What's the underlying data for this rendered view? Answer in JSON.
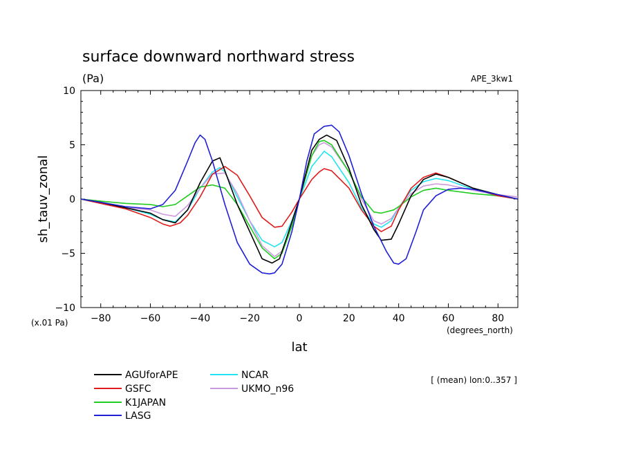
{
  "chart_data": {
    "type": "line",
    "title": "surface downward northward stress",
    "units": "(Pa)",
    "experiment": "APE_3kw1",
    "ylabel": "sh_tauv_zonal",
    "xlabel": "lat",
    "y_scale_note": "(x.01 Pa)",
    "x_unit_note": "(degrees_north)",
    "annotation": "[ (mean) lon:0..357 ]",
    "xlim": [
      -88,
      88
    ],
    "ylim": [
      -10,
      10
    ],
    "x_ticks": [
      -80,
      -60,
      -40,
      -20,
      0,
      20,
      40,
      60,
      80
    ],
    "x_tick_labels": [
      "−80",
      "−60",
      "−40",
      "−20",
      "0",
      "20",
      "40",
      "60",
      "80"
    ],
    "y_ticks": [
      -10,
      -5,
      0,
      5,
      10
    ],
    "y_tick_labels": [
      "−10",
      "−5",
      "0",
      "5",
      "10"
    ],
    "series": [
      {
        "name": "AGUforAPE",
        "color": "#000000",
        "x": [
          -88,
          -80,
          -70,
          -60,
          -55,
          -50,
          -45,
          -40,
          -35,
          -32,
          -30,
          -25,
          -20,
          -15,
          -11,
          -8,
          -5,
          0,
          5,
          8,
          11,
          15,
          20,
          25,
          30,
          33,
          37,
          40,
          45,
          50,
          55,
          60,
          70,
          80,
          88
        ],
        "y": [
          0,
          -0.3,
          -0.8,
          -1.3,
          -1.9,
          -2.2,
          -1.0,
          1.5,
          3.5,
          3.8,
          2.6,
          -0.5,
          -3.0,
          -5.5,
          -5.9,
          -5.5,
          -3.5,
          0,
          4.5,
          5.5,
          5.9,
          5.4,
          2.8,
          -0.5,
          -2.8,
          -3.8,
          -3.7,
          -2.3,
          0.3,
          1.8,
          2.3,
          2.0,
          1.0,
          0.4,
          0
        ]
      },
      {
        "name": "GSFC",
        "color": "#e01b1b",
        "x": [
          -88,
          -80,
          -70,
          -60,
          -55,
          -52,
          -48,
          -45,
          -40,
          -35,
          -30,
          -25,
          -20,
          -15,
          -10,
          -7,
          -3,
          0,
          5,
          8,
          10,
          13,
          20,
          25,
          30,
          33,
          37,
          40,
          45,
          50,
          55,
          60,
          70,
          80,
          88
        ],
        "y": [
          0,
          -0.4,
          -0.9,
          -1.7,
          -2.3,
          -2.5,
          -2.2,
          -1.5,
          0.2,
          2.3,
          3.0,
          2.2,
          0.3,
          -1.7,
          -2.6,
          -2.5,
          -1.2,
          0,
          1.8,
          2.5,
          2.8,
          2.6,
          1.0,
          -1.0,
          -2.5,
          -3.0,
          -2.5,
          -1.0,
          1.0,
          2.0,
          2.4,
          2.0,
          1.0,
          0.3,
          0
        ]
      },
      {
        "name": "K1JAPAN",
        "color": "#1fcc1f",
        "x": [
          -88,
          -80,
          -70,
          -60,
          -55,
          -50,
          -45,
          -40,
          -35,
          -30,
          -25,
          -20,
          -15,
          -10,
          -7,
          -3,
          0,
          5,
          8,
          10,
          13,
          20,
          25,
          30,
          33,
          38,
          40,
          45,
          50,
          55,
          60,
          70,
          80,
          88
        ],
        "y": [
          0,
          -0.2,
          -0.4,
          -0.5,
          -0.7,
          -0.5,
          0.3,
          1.1,
          1.3,
          1.0,
          -0.5,
          -2.5,
          -4.5,
          -5.5,
          -5.0,
          -2.5,
          0,
          4.0,
          5.3,
          5.4,
          5.0,
          2.5,
          0.2,
          -1.2,
          -1.3,
          -1.0,
          -0.7,
          0.2,
          0.8,
          1.0,
          0.8,
          0.5,
          0.3,
          0
        ]
      },
      {
        "name": "LASG",
        "color": "#1f1fd6",
        "x": [
          -88,
          -80,
          -70,
          -60,
          -55,
          -50,
          -45,
          -42,
          -40,
          -38,
          -35,
          -30,
          -25,
          -20,
          -15,
          -12,
          -10,
          -7,
          -3,
          0,
          3,
          6,
          10,
          13,
          16,
          20,
          25,
          30,
          35,
          38,
          40,
          43,
          47,
          50,
          55,
          60,
          65,
          70,
          80,
          88
        ],
        "y": [
          0,
          -0.3,
          -0.7,
          -0.9,
          -0.5,
          0.8,
          3.5,
          5.2,
          5.9,
          5.5,
          3.5,
          -0.5,
          -4.0,
          -6.0,
          -6.8,
          -6.9,
          -6.8,
          -6.0,
          -3.0,
          0,
          3.5,
          6.0,
          6.7,
          6.8,
          6.2,
          4.0,
          0.5,
          -2.5,
          -4.8,
          -5.9,
          -6.0,
          -5.5,
          -3.0,
          -1.0,
          0.3,
          0.9,
          1.0,
          0.9,
          0.4,
          0
        ]
      },
      {
        "name": "NCAR",
        "color": "#22e4f0",
        "x": [
          -88,
          -80,
          -70,
          -60,
          -55,
          -50,
          -45,
          -40,
          -35,
          -32,
          -30,
          -25,
          -20,
          -15,
          -10,
          -7,
          -3,
          0,
          5,
          10,
          13,
          20,
          25,
          30,
          33,
          37,
          40,
          45,
          50,
          55,
          60,
          70,
          80,
          88
        ],
        "y": [
          0,
          -0.3,
          -0.8,
          -1.4,
          -1.9,
          -2.1,
          -1.0,
          1.0,
          2.5,
          2.9,
          2.5,
          0.2,
          -2.0,
          -3.8,
          -4.4,
          -4.0,
          -2.0,
          0,
          3.0,
          4.4,
          3.9,
          1.5,
          -0.8,
          -2.3,
          -2.6,
          -2.0,
          -0.8,
          0.8,
          1.6,
          1.9,
          1.7,
          0.9,
          0.3,
          0
        ]
      },
      {
        "name": "UKMO_n96",
        "color": "#cc99dd",
        "x": [
          -88,
          -80,
          -70,
          -60,
          -55,
          -50,
          -45,
          -40,
          -35,
          -30,
          -25,
          -20,
          -15,
          -10,
          -7,
          -3,
          0,
          5,
          8,
          10,
          13,
          20,
          25,
          30,
          33,
          37,
          40,
          45,
          50,
          55,
          60,
          70,
          80,
          88
        ],
        "y": [
          0,
          -0.4,
          -0.8,
          -1.0,
          -1.4,
          -1.6,
          -0.6,
          1.0,
          2.3,
          2.4,
          0.5,
          -2.0,
          -4.3,
          -5.3,
          -4.8,
          -2.4,
          0,
          4.0,
          5.0,
          5.2,
          4.8,
          2.5,
          0,
          -2.0,
          -2.3,
          -1.8,
          -0.8,
          0.5,
          1.2,
          1.4,
          1.3,
          0.8,
          0.4,
          0.2
        ]
      }
    ]
  }
}
